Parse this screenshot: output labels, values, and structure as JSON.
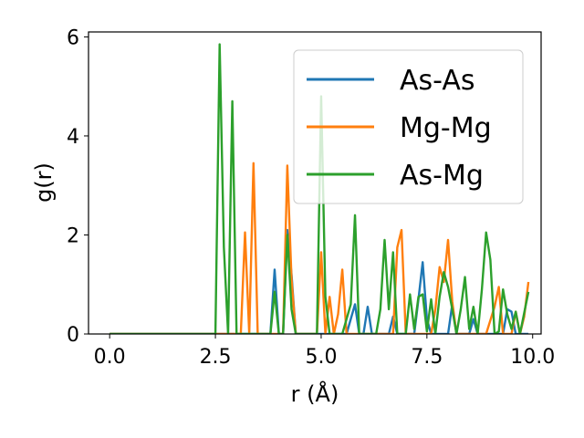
{
  "chart_data": {
    "type": "line",
    "xlabel": "r (Å)",
    "ylabel": "g(r)",
    "xlim": [
      -0.5,
      10.2
    ],
    "ylim": [
      0,
      6.1
    ],
    "xticks": [
      0.0,
      2.5,
      5.0,
      7.5,
      10.0
    ],
    "xtick_labels": [
      "0.0",
      "2.5",
      "5.0",
      "7.5",
      "10.0"
    ],
    "yticks": [
      0,
      2,
      4,
      6
    ],
    "ytick_labels": [
      "0",
      "2",
      "4",
      "6"
    ],
    "grid": false,
    "legend": "top-right",
    "series": [
      {
        "name": "As-As",
        "color": "#1f77b4",
        "points": [
          [
            0.0,
            0
          ],
          [
            3.6,
            0
          ],
          [
            3.8,
            0
          ],
          [
            3.9,
            1.3
          ],
          [
            4.0,
            0
          ],
          [
            4.1,
            0
          ],
          [
            4.2,
            2.1
          ],
          [
            4.3,
            1.2
          ],
          [
            4.4,
            0
          ],
          [
            5.6,
            0
          ],
          [
            5.8,
            0.6
          ],
          [
            5.9,
            0
          ],
          [
            6.0,
            0
          ],
          [
            6.1,
            0.55
          ],
          [
            6.2,
            0
          ],
          [
            6.6,
            0
          ],
          [
            6.7,
            0.35
          ],
          [
            6.8,
            0
          ],
          [
            7.2,
            0
          ],
          [
            7.3,
            0.7
          ],
          [
            7.4,
            1.45
          ],
          [
            7.5,
            0.3
          ],
          [
            7.6,
            0
          ],
          [
            8.0,
            0
          ],
          [
            8.1,
            0.6
          ],
          [
            8.2,
            0
          ],
          [
            8.5,
            0
          ],
          [
            8.6,
            0.3
          ],
          [
            8.7,
            0
          ],
          [
            9.3,
            0
          ],
          [
            9.4,
            0.5
          ],
          [
            9.5,
            0.45
          ],
          [
            9.6,
            0
          ],
          [
            9.9,
            0
          ]
        ]
      },
      {
        "name": "Mg-Mg",
        "color": "#ff7f0e",
        "points": [
          [
            0.0,
            0
          ],
          [
            3.1,
            0
          ],
          [
            3.2,
            2.05
          ],
          [
            3.3,
            0
          ],
          [
            3.4,
            3.45
          ],
          [
            3.5,
            0
          ],
          [
            4.1,
            0
          ],
          [
            4.2,
            3.4
          ],
          [
            4.3,
            1.1
          ],
          [
            4.4,
            0
          ],
          [
            4.9,
            0
          ],
          [
            5.0,
            1.65
          ],
          [
            5.1,
            0
          ],
          [
            5.2,
            0.75
          ],
          [
            5.3,
            0
          ],
          [
            5.4,
            0.4
          ],
          [
            5.5,
            1.3
          ],
          [
            5.6,
            0
          ],
          [
            6.7,
            0
          ],
          [
            6.8,
            1.75
          ],
          [
            6.9,
            2.1
          ],
          [
            7.0,
            0
          ],
          [
            7.6,
            0
          ],
          [
            7.7,
            0.5
          ],
          [
            7.8,
            1.35
          ],
          [
            7.9,
            1.05
          ],
          [
            8.0,
            1.9
          ],
          [
            8.1,
            0.65
          ],
          [
            8.2,
            0
          ],
          [
            8.9,
            0
          ],
          [
            9.1,
            0.55
          ],
          [
            9.2,
            0.95
          ],
          [
            9.3,
            0
          ],
          [
            9.5,
            0
          ],
          [
            9.6,
            0.45
          ],
          [
            9.7,
            0
          ],
          [
            9.8,
            0.35
          ],
          [
            9.9,
            1.05
          ]
        ]
      },
      {
        "name": "As-Mg",
        "color": "#2ca02c",
        "points": [
          [
            0.0,
            0
          ],
          [
            2.5,
            0
          ],
          [
            2.6,
            5.85
          ],
          [
            2.7,
            1.75
          ],
          [
            2.8,
            0
          ],
          [
            2.9,
            4.7
          ],
          [
            3.0,
            0
          ],
          [
            3.8,
            0
          ],
          [
            3.9,
            0.85
          ],
          [
            4.0,
            0
          ],
          [
            4.1,
            0
          ],
          [
            4.2,
            2.0
          ],
          [
            4.3,
            0.5
          ],
          [
            4.4,
            0
          ],
          [
            4.9,
            0
          ],
          [
            5.0,
            4.8
          ],
          [
            5.1,
            0.75
          ],
          [
            5.2,
            0
          ],
          [
            5.5,
            0
          ],
          [
            5.6,
            0.3
          ],
          [
            5.7,
            0.6
          ],
          [
            5.8,
            2.4
          ],
          [
            5.9,
            0
          ],
          [
            6.3,
            0
          ],
          [
            6.4,
            0.5
          ],
          [
            6.5,
            1.9
          ],
          [
            6.6,
            0.5
          ],
          [
            6.7,
            1.65
          ],
          [
            6.8,
            0
          ],
          [
            7.0,
            0
          ],
          [
            7.1,
            0.8
          ],
          [
            7.2,
            0.1
          ],
          [
            7.3,
            0.75
          ],
          [
            7.4,
            0.8
          ],
          [
            7.5,
            0.05
          ],
          [
            7.6,
            0.7
          ],
          [
            7.7,
            0
          ],
          [
            7.8,
            0.75
          ],
          [
            7.9,
            1.25
          ],
          [
            8.0,
            0.95
          ],
          [
            8.1,
            0.5
          ],
          [
            8.2,
            0
          ],
          [
            8.3,
            0.5
          ],
          [
            8.4,
            1.15
          ],
          [
            8.5,
            0.1
          ],
          [
            8.6,
            0.55
          ],
          [
            8.7,
            0
          ],
          [
            8.8,
            0.9
          ],
          [
            8.9,
            2.05
          ],
          [
            9.0,
            1.5
          ],
          [
            9.1,
            0
          ],
          [
            9.2,
            0.05
          ],
          [
            9.3,
            0.9
          ],
          [
            9.4,
            0.4
          ],
          [
            9.5,
            0.1
          ],
          [
            9.6,
            0.45
          ],
          [
            9.7,
            0
          ],
          [
            9.9,
            0.85
          ]
        ]
      }
    ]
  }
}
